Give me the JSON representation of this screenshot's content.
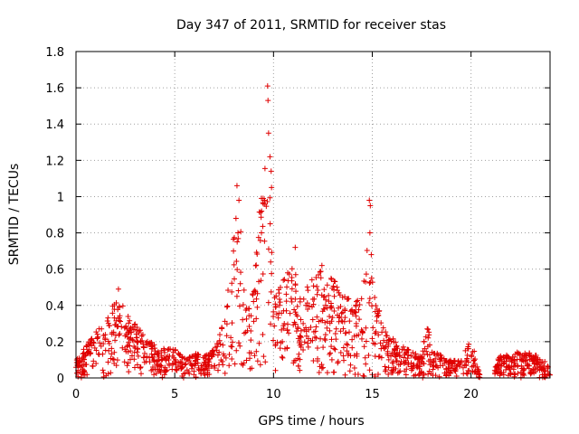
{
  "chart_data": {
    "type": "scatter",
    "title": "Day 347 of 2011, SRMTID for receiver stas",
    "xlabel": "GPS time / hours",
    "ylabel": "SRMTID / TECUs",
    "xlim": [
      0,
      24
    ],
    "ylim": [
      0,
      1.8
    ],
    "xticks": [
      0,
      5,
      10,
      15,
      20
    ],
    "yticks": [
      0,
      0.2,
      0.4,
      0.6,
      0.8,
      1,
      1.2,
      1.4,
      1.6,
      1.8
    ],
    "xtick_labels": [
      "0",
      "5",
      "10",
      "15",
      "20"
    ],
    "ytick_labels": [
      "0",
      "0.2",
      "0.4",
      "0.6",
      "0.8",
      "1",
      "1.2",
      "1.4",
      "1.6",
      "1.8"
    ],
    "grid": true,
    "marker": "+",
    "color": "#e00000",
    "envelope": [
      [
        0.0,
        0.1
      ],
      [
        0.5,
        0.18
      ],
      [
        1.0,
        0.26
      ],
      [
        1.5,
        0.3
      ],
      [
        2.0,
        0.47
      ],
      [
        2.5,
        0.38
      ],
      [
        3.0,
        0.3
      ],
      [
        3.5,
        0.24
      ],
      [
        4.0,
        0.18
      ],
      [
        4.5,
        0.16
      ],
      [
        5.0,
        0.16
      ],
      [
        5.5,
        0.12
      ],
      [
        6.0,
        0.14
      ],
      [
        6.5,
        0.12
      ],
      [
        7.0,
        0.16
      ],
      [
        7.5,
        0.32
      ],
      [
        8.0,
        0.88
      ],
      [
        8.3,
        0.95
      ],
      [
        8.6,
        0.45
      ],
      [
        9.0,
        0.5
      ],
      [
        9.3,
        0.95
      ],
      [
        9.7,
        1.45
      ],
      [
        10.0,
        0.45
      ],
      [
        10.5,
        0.55
      ],
      [
        11.0,
        0.62
      ],
      [
        11.5,
        0.5
      ],
      [
        12.0,
        0.55
      ],
      [
        12.5,
        0.6
      ],
      [
        13.0,
        0.55
      ],
      [
        13.5,
        0.48
      ],
      [
        14.0,
        0.42
      ],
      [
        14.5,
        0.45
      ],
      [
        14.8,
        0.85
      ],
      [
        15.0,
        0.55
      ],
      [
        15.5,
        0.3
      ],
      [
        16.0,
        0.22
      ],
      [
        16.5,
        0.18
      ],
      [
        17.0,
        0.15
      ],
      [
        17.5,
        0.12
      ],
      [
        17.8,
        0.34
      ],
      [
        18.0,
        0.15
      ],
      [
        19.0,
        0.1
      ],
      [
        19.5,
        0.1
      ],
      [
        20.0,
        0.22
      ],
      [
        20.5,
        0.0
      ],
      [
        21.0,
        0.0
      ],
      [
        21.5,
        0.14
      ],
      [
        22.0,
        0.12
      ],
      [
        22.5,
        0.16
      ],
      [
        23.0,
        0.14
      ],
      [
        23.5,
        0.12
      ],
      [
        24.0,
        0.06
      ]
    ],
    "spikes": [
      {
        "x": 8.15,
        "y": 1.06
      },
      {
        "x": 8.25,
        "y": 0.98
      },
      {
        "x": 8.1,
        "y": 0.88
      },
      {
        "x": 8.2,
        "y": 0.8
      },
      {
        "x": 9.55,
        "y": 0.98
      },
      {
        "x": 9.7,
        "y": 1.61
      },
      {
        "x": 9.72,
        "y": 1.53
      },
      {
        "x": 9.75,
        "y": 1.35
      },
      {
        "x": 9.82,
        "y": 1.22
      },
      {
        "x": 9.88,
        "y": 1.14
      },
      {
        "x": 9.9,
        "y": 1.05
      },
      {
        "x": 14.85,
        "y": 0.98
      },
      {
        "x": 14.9,
        "y": 0.95
      },
      {
        "x": 14.88,
        "y": 0.8
      },
      {
        "x": 14.95,
        "y": 0.68
      },
      {
        "x": 11.1,
        "y": 0.72
      },
      {
        "x": 12.45,
        "y": 0.62
      },
      {
        "x": 2.15,
        "y": 0.49
      }
    ],
    "gap_hours": [
      20.5,
      21.2
    ],
    "point_count": 1400
  }
}
